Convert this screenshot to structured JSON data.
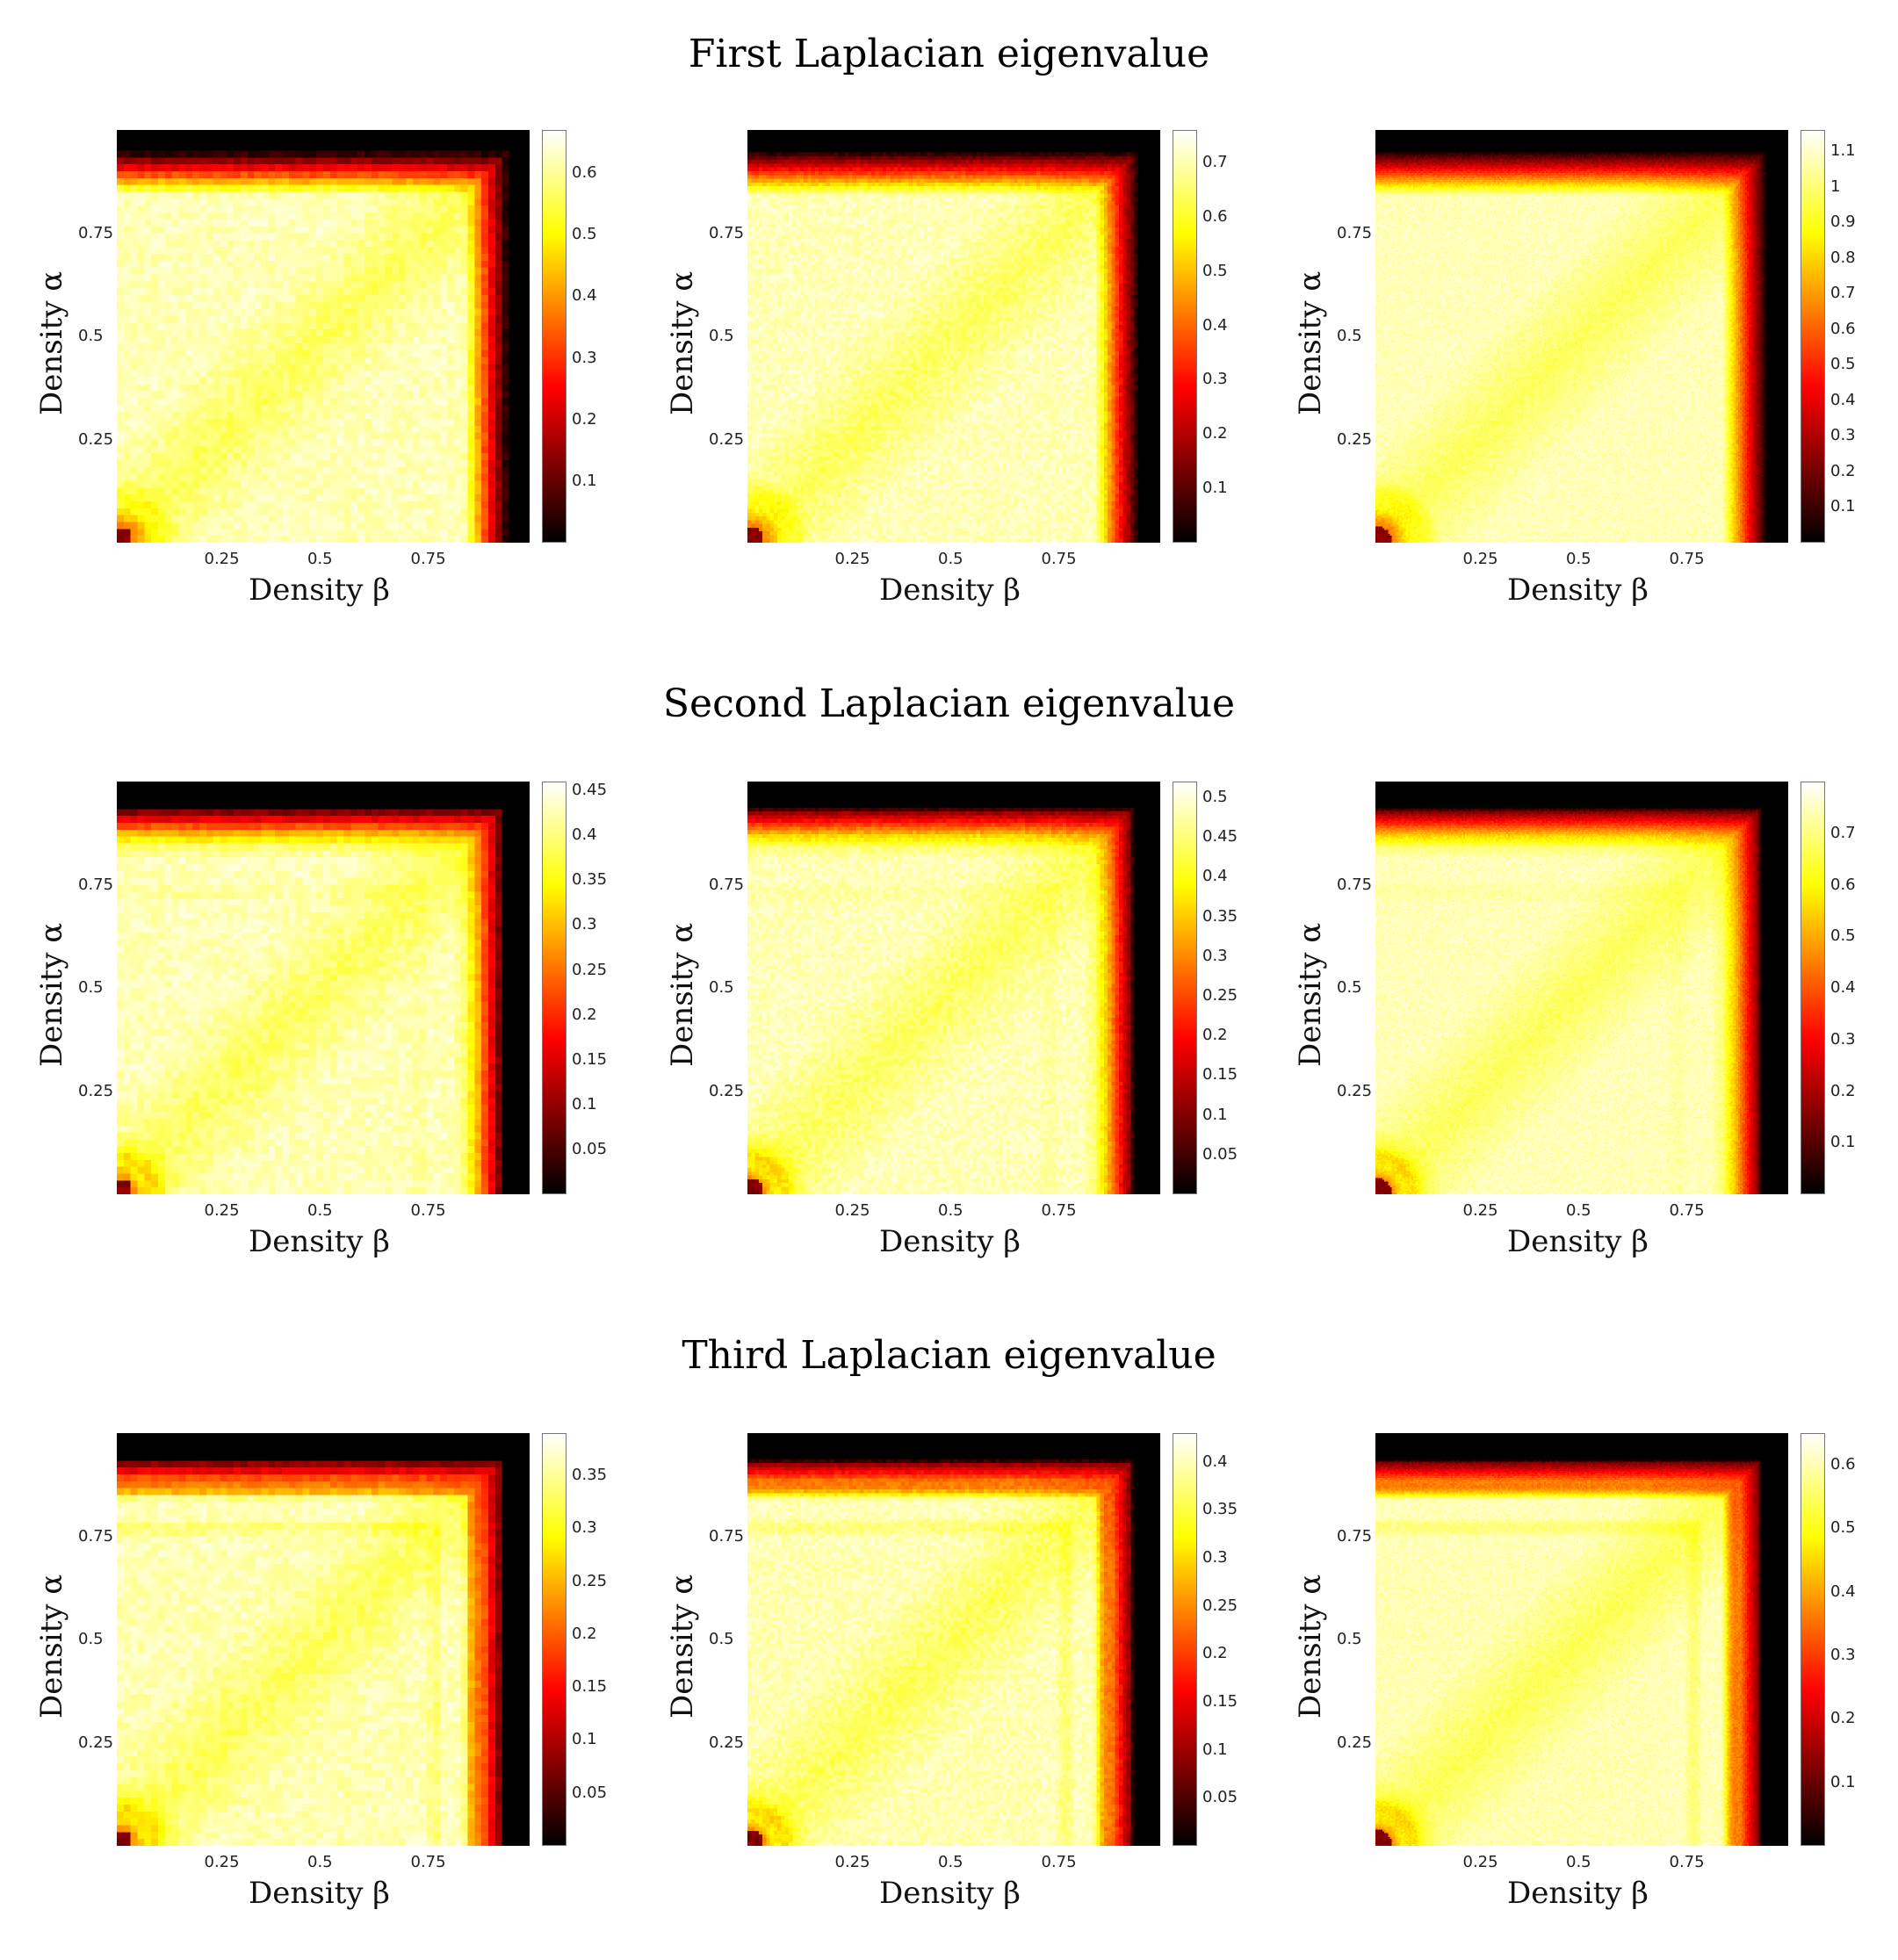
{
  "row_titles": [
    "First Laplacian eigenvalue",
    "Second Laplacian eigenvalue",
    "Third Laplacian eigenvalue"
  ],
  "chart_data": [
    {
      "type": "heatmap",
      "row": 0,
      "col": 0,
      "xlabel": "Density β",
      "ylabel": "Density α",
      "xticks": [
        "0.25",
        "0.5",
        "0.75"
      ],
      "yticks": [
        "0.25",
        "0.5",
        "0.75"
      ],
      "xlim": [
        0,
        1
      ],
      "ylim": [
        0,
        1
      ],
      "resolution": "coarse",
      "clim": [
        0,
        0.67
      ],
      "colorbar_ticks": [
        "0.1",
        "0.2",
        "0.3",
        "0.4",
        "0.5",
        "0.6"
      ],
      "colorbar_values": [
        0.1,
        0.2,
        0.3,
        0.4,
        0.5,
        0.6
      ],
      "colormap": "hot",
      "rings": 0
    },
    {
      "type": "heatmap",
      "row": 0,
      "col": 1,
      "xlabel": "Density β",
      "ylabel": "Density α",
      "xticks": [
        "0.25",
        "0.5",
        "0.75"
      ],
      "yticks": [
        "0.25",
        "0.5",
        "0.75"
      ],
      "xlim": [
        0,
        1
      ],
      "ylim": [
        0,
        1
      ],
      "resolution": "medium",
      "clim": [
        0,
        0.76
      ],
      "colorbar_ticks": [
        "0.1",
        "0.2",
        "0.3",
        "0.4",
        "0.5",
        "0.6",
        "0.7"
      ],
      "colorbar_values": [
        0.1,
        0.2,
        0.3,
        0.4,
        0.5,
        0.6,
        0.7
      ],
      "colormap": "hot",
      "rings": 0
    },
    {
      "type": "heatmap",
      "row": 0,
      "col": 2,
      "xlabel": "Density β",
      "ylabel": "Density α",
      "xticks": [
        "0.25",
        "0.5",
        "0.75"
      ],
      "yticks": [
        "0.25",
        "0.5",
        "0.75"
      ],
      "xlim": [
        0,
        1
      ],
      "ylim": [
        0,
        1
      ],
      "resolution": "fine",
      "clim": [
        0,
        1.16
      ],
      "colorbar_ticks": [
        "0.1",
        "0.2",
        "0.3",
        "0.4",
        "0.5",
        "0.6",
        "0.7",
        "0.8",
        "0.9",
        "1",
        "1.1"
      ],
      "colorbar_values": [
        0.1,
        0.2,
        0.3,
        0.4,
        0.5,
        0.6,
        0.7,
        0.8,
        0.9,
        1,
        1.1
      ],
      "colormap": "hot",
      "rings": 0
    },
    {
      "type": "heatmap",
      "row": 1,
      "col": 0,
      "xlabel": "Density β",
      "ylabel": "Density α",
      "xticks": [
        "0.25",
        "0.5",
        "0.75"
      ],
      "yticks": [
        "0.25",
        "0.5",
        "0.75"
      ],
      "xlim": [
        0,
        1
      ],
      "ylim": [
        0,
        1
      ],
      "resolution": "coarse",
      "clim": [
        0,
        0.46
      ],
      "colorbar_ticks": [
        "0.05",
        "0.1",
        "0.15",
        "0.2",
        "0.25",
        "0.3",
        "0.35",
        "0.4",
        "0.45"
      ],
      "colorbar_values": [
        0.05,
        0.1,
        0.15,
        0.2,
        0.25,
        0.3,
        0.35,
        0.4,
        0.45
      ],
      "colormap": "hot",
      "rings": 1
    },
    {
      "type": "heatmap",
      "row": 1,
      "col": 1,
      "xlabel": "Density β",
      "ylabel": "Density α",
      "xticks": [
        "0.25",
        "0.5",
        "0.75"
      ],
      "yticks": [
        "0.25",
        "0.5",
        "0.75"
      ],
      "xlim": [
        0,
        1
      ],
      "ylim": [
        0,
        1
      ],
      "resolution": "medium",
      "clim": [
        0,
        0.52
      ],
      "colorbar_ticks": [
        "0.05",
        "0.1",
        "0.15",
        "0.2",
        "0.25",
        "0.3",
        "0.35",
        "0.4",
        "0.45",
        "0.5"
      ],
      "colorbar_values": [
        0.05,
        0.1,
        0.15,
        0.2,
        0.25,
        0.3,
        0.35,
        0.4,
        0.45,
        0.5
      ],
      "colormap": "hot",
      "rings": 1
    },
    {
      "type": "heatmap",
      "row": 1,
      "col": 2,
      "xlabel": "Density β",
      "ylabel": "Density α",
      "xticks": [
        "0.25",
        "0.5",
        "0.75"
      ],
      "yticks": [
        "0.25",
        "0.5",
        "0.75"
      ],
      "xlim": [
        0,
        1
      ],
      "ylim": [
        0,
        1
      ],
      "resolution": "fine",
      "clim": [
        0,
        0.8
      ],
      "colorbar_ticks": [
        "0.1",
        "0.2",
        "0.3",
        "0.4",
        "0.5",
        "0.6",
        "0.7"
      ],
      "colorbar_values": [
        0.1,
        0.2,
        0.3,
        0.4,
        0.5,
        0.6,
        0.7
      ],
      "colormap": "hot",
      "rings": 1
    },
    {
      "type": "heatmap",
      "row": 2,
      "col": 0,
      "xlabel": "Density β",
      "ylabel": "Density α",
      "xticks": [
        "0.25",
        "0.5",
        "0.75"
      ],
      "yticks": [
        "0.25",
        "0.5",
        "0.75"
      ],
      "xlim": [
        0,
        1
      ],
      "ylim": [
        0,
        1
      ],
      "resolution": "coarse",
      "clim": [
        0,
        0.39
      ],
      "colorbar_ticks": [
        "0.05",
        "0.1",
        "0.15",
        "0.2",
        "0.25",
        "0.3",
        "0.35"
      ],
      "colorbar_values": [
        0.05,
        0.1,
        0.15,
        0.2,
        0.25,
        0.3,
        0.35
      ],
      "colormap": "hot",
      "rings": 2
    },
    {
      "type": "heatmap",
      "row": 2,
      "col": 1,
      "xlabel": "Density β",
      "ylabel": "Density α",
      "xticks": [
        "0.25",
        "0.5",
        "0.75"
      ],
      "yticks": [
        "0.25",
        "0.5",
        "0.75"
      ],
      "xlim": [
        0,
        1
      ],
      "ylim": [
        0,
        1
      ],
      "resolution": "medium",
      "clim": [
        0,
        0.43
      ],
      "colorbar_ticks": [
        "0.05",
        "0.1",
        "0.15",
        "0.2",
        "0.25",
        "0.3",
        "0.35",
        "0.4"
      ],
      "colorbar_values": [
        0.05,
        0.1,
        0.15,
        0.2,
        0.25,
        0.3,
        0.35,
        0.4
      ],
      "colormap": "hot",
      "rings": 2
    },
    {
      "type": "heatmap",
      "row": 2,
      "col": 2,
      "xlabel": "Density β",
      "ylabel": "Density α",
      "xticks": [
        "0.25",
        "0.5",
        "0.75"
      ],
      "yticks": [
        "0.25",
        "0.5",
        "0.75"
      ],
      "xlim": [
        0,
        1
      ],
      "ylim": [
        0,
        1
      ],
      "resolution": "fine",
      "clim": [
        0,
        0.65
      ],
      "colorbar_ticks": [
        "0.1",
        "0.2",
        "0.3",
        "0.4",
        "0.5",
        "0.6"
      ],
      "colorbar_values": [
        0.1,
        0.2,
        0.3,
        0.4,
        0.5,
        0.6
      ],
      "colormap": "hot",
      "rings": 2
    }
  ]
}
